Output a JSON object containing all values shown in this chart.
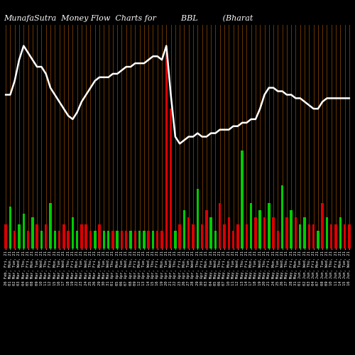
{
  "title": "MunafaSutra  Money Flow  Charts for          BBL          (Bharat",
  "background_color": "#000000",
  "bar_colors_pattern": [
    "red",
    "green",
    "red",
    "green",
    "green",
    "red",
    "green",
    "red",
    "green",
    "red",
    "green",
    "green",
    "red",
    "red",
    "red",
    "green",
    "green",
    "red",
    "red",
    "red",
    "green",
    "red",
    "green",
    "green",
    "red",
    "green",
    "red",
    "red",
    "green",
    "red",
    "green",
    "green",
    "red",
    "green",
    "red",
    "red",
    "red",
    "red",
    "green",
    "red",
    "green",
    "red",
    "red",
    "green",
    "red",
    "red",
    "green",
    "green",
    "red",
    "red",
    "red",
    "red",
    "red",
    "green",
    "red",
    "green",
    "red",
    "green",
    "red",
    "green",
    "red",
    "red",
    "green",
    "red",
    "green",
    "red",
    "green",
    "green",
    "red",
    "red",
    "green",
    "red",
    "green",
    "red",
    "red",
    "green",
    "red",
    "red"
  ],
  "bar_heights": [
    3.5,
    6.0,
    2.5,
    3.5,
    5.0,
    2.5,
    4.5,
    3.5,
    2.5,
    3.5,
    6.5,
    2.5,
    2.5,
    3.5,
    2.5,
    4.5,
    2.5,
    3.5,
    3.5,
    2.5,
    2.5,
    3.5,
    2.5,
    2.5,
    2.5,
    2.5,
    2.5,
    2.5,
    2.5,
    2.5,
    2.5,
    2.5,
    2.5,
    2.5,
    2.5,
    2.5,
    28.0,
    20.0,
    2.5,
    3.5,
    5.5,
    4.5,
    3.5,
    8.5,
    3.5,
    5.5,
    4.5,
    2.5,
    6.5,
    3.5,
    4.5,
    2.5,
    3.5,
    14.0,
    3.5,
    6.5,
    4.5,
    5.5,
    4.5,
    6.5,
    4.5,
    2.5,
    9.0,
    4.5,
    5.5,
    4.5,
    3.5,
    4.5,
    3.5,
    3.5,
    2.5,
    6.5,
    4.5,
    3.5,
    3.5,
    4.5,
    3.5,
    3.5
  ],
  "line_values": [
    22,
    22,
    24,
    27,
    29,
    28,
    27,
    26,
    26,
    25,
    23,
    22,
    21,
    20,
    19,
    18.5,
    19.5,
    21,
    22,
    23,
    24,
    24.5,
    24.5,
    24.5,
    25,
    25,
    25.5,
    26,
    26,
    26.5,
    26.5,
    26.5,
    27,
    27.5,
    27.5,
    27,
    29,
    22,
    16,
    15,
    15.5,
    16,
    16,
    16.5,
    16,
    16,
    16.5,
    16.5,
    17,
    17,
    17,
    17.5,
    17.5,
    18,
    18,
    18.5,
    18.5,
    20,
    22,
    23,
    23,
    22.5,
    22.5,
    22,
    22,
    21.5,
    21.5,
    21,
    20.5,
    20,
    20,
    21,
    21.5,
    21.5,
    21.5,
    21.5,
    21.5,
    21.5
  ],
  "n_bars": 78,
  "line_color": "#ffffff",
  "vertical_lines_color": "#8B4500",
  "xlabel_color": "#ffffff",
  "title_color": "#ffffff",
  "title_fontsize": 8,
  "xlabel_fontsize": 4.0,
  "ylim_max": 32,
  "x_labels": [
    "26 Feb, Fri, 21",
    "01 Mar, Mon, 21",
    "02 Mar, Tue, 21",
    "03 Mar, Wed, 21",
    "04 Mar, Thu, 21",
    "05 Mar, Fri, 21",
    "08 Mar, Mon, 21",
    "09 Mar, Tue, 21",
    "10 Mar, Wed, 21",
    "11 Mar, Thu, 21",
    "12 Mar, Fri, 21",
    "15 Mar, Mon, 21",
    "16 Mar, Tue, 21",
    "17 Mar, Wed, 21",
    "18 Mar, Thu, 21",
    "19 Mar, Fri, 21",
    "22 Mar, Mon, 21",
    "23 Mar, Tue, 21",
    "24 Mar, Wed, 21",
    "25 Mar, Thu, 21",
    "26 Mar, Fri, 21",
    "29 Mar, Mon, 21",
    "30 Mar, Tue, 21",
    "31 Mar, Wed, 21",
    "01 Apr, Thu, 21",
    "05 Apr, Mon, 21",
    "06 Apr, Tue, 21",
    "07 Apr, Wed, 21",
    "08 Apr, Thu, 21",
    "09 Apr, Fri, 21",
    "12 Apr, Mon, 21",
    "13 Apr, Tue, 21",
    "14 Apr, Wed, 21",
    "15 Apr, Thu, 21",
    "16 Apr, Fri, 21",
    "19 Apr, Mon, 21",
    "20 Apr, Tue, 21",
    "21 Apr, Wed, 21",
    "22 Apr, Thu, 21",
    "23 Apr, Fri, 21",
    "26 Apr, Mon, 21",
    "27 Apr, Tue, 21",
    "28 Apr, Wed, 21",
    "29 Apr, Thu, 21",
    "30 Apr, Fri, 21",
    "03 May, Mon, 21",
    "04 May, Tue, 21",
    "05 May, Wed, 21",
    "06 May, Thu, 21",
    "07 May, Fri, 21",
    "10 May, Mon, 21",
    "11 May, Tue, 21",
    "12 May, Wed, 21",
    "13 May, Thu, 21",
    "14 May, Fri, 21",
    "17 May, Mon, 21",
    "18 May, Tue, 21",
    "19 May, Wed, 21",
    "20 May, Thu, 21",
    "21 May, Fri, 21",
    "24 May, Mon, 21",
    "25 May, Tue, 21",
    "26 May, Wed, 21",
    "27 May, Thu, 21",
    "28 May, Fri, 21",
    "31 May, Mon, 21",
    "01 Jun, Tue, 21",
    "02 Jun, Wed, 21",
    "03 Jun, Thu, 21",
    "04 Jun, Fri, 21",
    "07 Jun, Mon, 21",
    "08 Jun, Tue, 21",
    "09 Jun, Wed, 21",
    "10 Jun, Thu, 21",
    "11 Jun, Fri, 21",
    "14 Jun, Mon, 21",
    "15 Jun, Tue, 21",
    "16 Jun, Wed, 21"
  ]
}
